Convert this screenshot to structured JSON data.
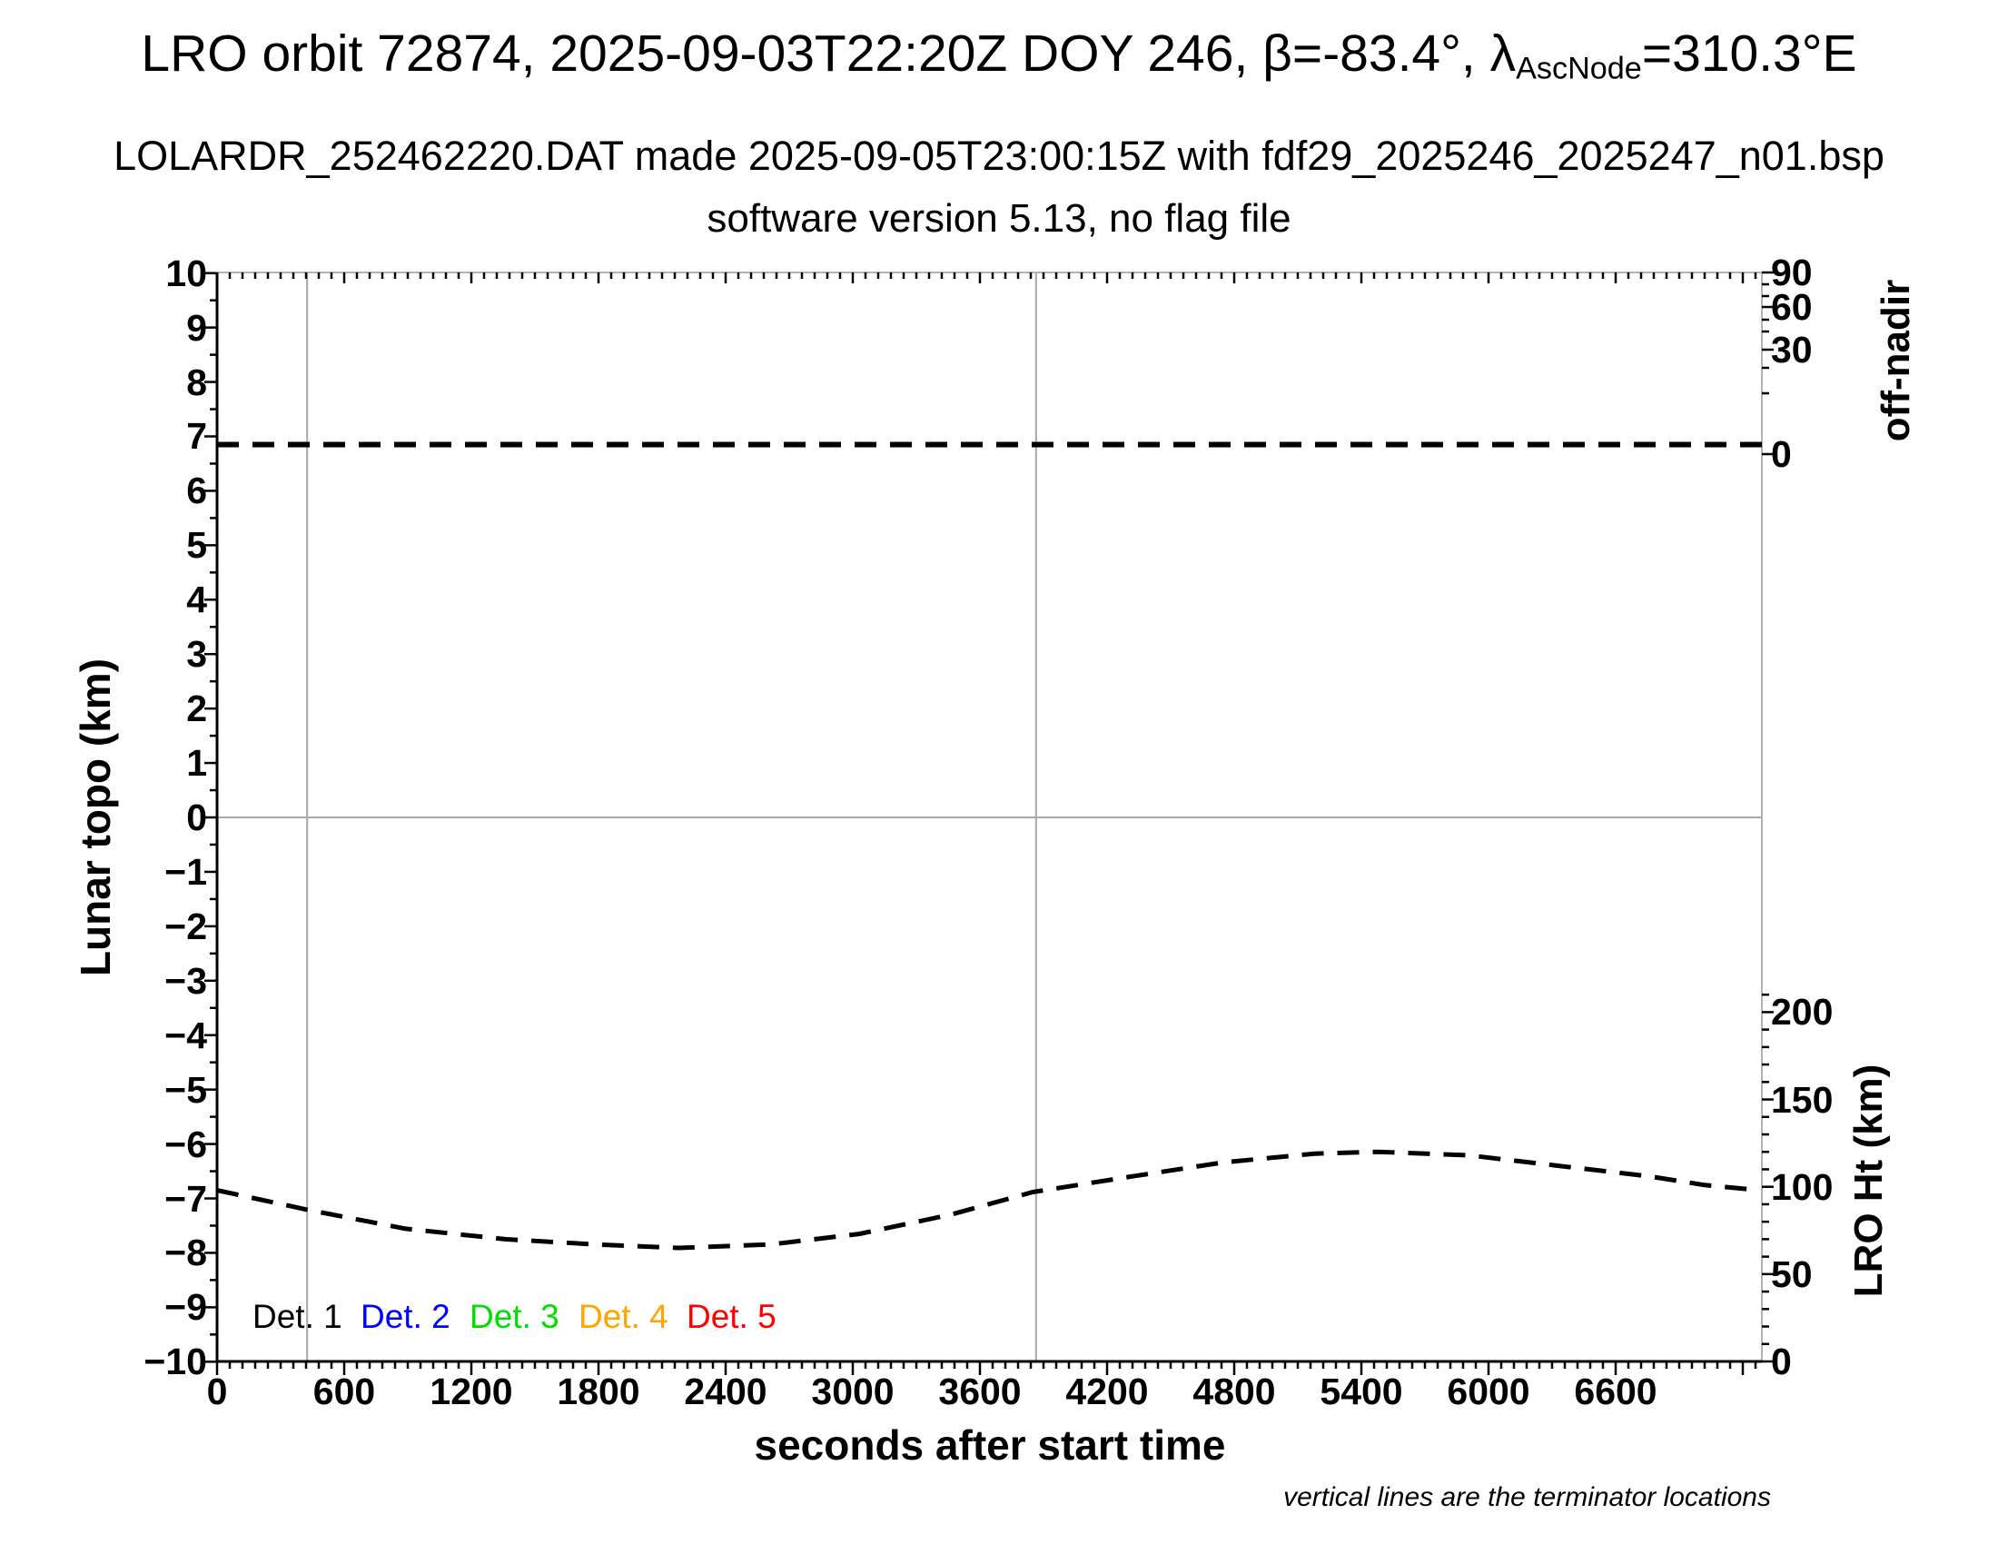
{
  "title": {
    "prefix": "LRO orbit 72874, 2025-09-03T22:20Z DOY 246, β=-83.4°, λ",
    "subscript": "AscNode",
    "suffix": "=310.3°E"
  },
  "subtitle_file": "LOLARDR_252462220.DAT made 2025-09-05T23:00:15Z with fdf29_2025246_2025247_n01.bsp",
  "subtitle_version": "software version 5.13, no flag file",
  "footnote": "vertical lines are the terminator locations",
  "axes": {
    "x": {
      "title": "seconds after start time",
      "tick_values": [
        0,
        600,
        1200,
        1800,
        2400,
        3000,
        3600,
        4200,
        4800,
        5400,
        6000,
        6600
      ],
      "tick_labels": [
        "0",
        "600",
        "1200",
        "1800",
        "2400",
        "3000",
        "3600",
        "4200",
        "4800",
        "5400",
        "6000",
        "6600"
      ],
      "minor_step_s": 60,
      "range_s": [
        0,
        7290
      ]
    },
    "y_left": {
      "title": "Lunar topo (km)",
      "range": [
        -10,
        10
      ],
      "major_step": 1,
      "minor_step": 0.5,
      "tick_labels": [
        "10",
        "9",
        "8",
        "7",
        "6",
        "5",
        "4",
        "3",
        "2",
        "1",
        "0",
        "−1",
        "−2",
        "−3",
        "−4",
        "−5",
        "−6",
        "−7",
        "−8",
        "−9",
        "−10"
      ]
    },
    "y_right_offnadir": {
      "title": "off-nadir",
      "ticks": [
        {
          "y": 300,
          "label": "90"
        },
        {
          "y": 313,
          "label": ""
        },
        {
          "y": 326,
          "label": ""
        },
        {
          "y": 338,
          "label": "60"
        },
        {
          "y": 352,
          "label": ""
        },
        {
          "y": 365,
          "label": ""
        },
        {
          "y": 385,
          "label": "30"
        },
        {
          "y": 405,
          "label": ""
        },
        {
          "y": 433,
          "label": ""
        },
        {
          "y": 500,
          "label": "0"
        }
      ]
    },
    "y_right_height": {
      "title": "LRO Ht (km)",
      "tick_values": [
        200,
        150,
        100,
        50,
        0
      ],
      "tick_labels": [
        "200",
        "150",
        "100",
        "50",
        "0"
      ],
      "minor_step_km": 10,
      "minor_max_km": 210
    }
  },
  "legend": {
    "items": [
      {
        "label": "Det. 1",
        "color": "#000000"
      },
      {
        "label": "Det. 2",
        "color": "#0000ff"
      },
      {
        "label": "Det. 3",
        "color": "#00dd00"
      },
      {
        "label": "Det. 4",
        "color": "#ffa500"
      },
      {
        "label": "Det. 5",
        "color": "#ff0000"
      }
    ]
  },
  "colors": {
    "curve": "#000000",
    "frame_dark": "#000000",
    "frame_light": "#b3b3b3",
    "guide_gray": "#a8a8a8"
  },
  "chart_data": {
    "type": "line",
    "title": "LRO orbit 72874, 2025-09-03T22:20Z DOY 246, β=-83.4°, λAscNode=310.3°E",
    "xlabel": "seconds after start time",
    "x_range_s": [
      0,
      7290
    ],
    "left_axis": {
      "label": "Lunar topo (km)",
      "range": [
        -10,
        10
      ]
    },
    "right_axes": [
      {
        "label": "off-nadir",
        "tick_labels": [
          90,
          60,
          30,
          0
        ],
        "scale": "nonlinear"
      },
      {
        "label": "LRO Ht (km)",
        "tick_labels": [
          200,
          150,
          100,
          50,
          0
        ]
      }
    ],
    "grid": false,
    "legend_entries": [
      "Det. 1",
      "Det. 2",
      "Det. 3",
      "Det. 4",
      "Det. 5"
    ],
    "series": [
      {
        "name": "off-nadir angle",
        "axis": "off-nadir",
        "style": "dashed",
        "color": "#000000",
        "description": "essentially constant near 0° off-nadir for the whole pass",
        "constant_topo_axis_level": 6.85,
        "t_s": [
          0,
          7290
        ],
        "value_deg": [
          2,
          2
        ]
      },
      {
        "name": "LRO height",
        "axis": "LRO Ht (km)",
        "style": "dashed",
        "color": "#000000",
        "t_s": [
          0,
          420,
          890,
          1360,
          1790,
          2180,
          2610,
          3030,
          3460,
          3850,
          4320,
          4750,
          5180,
          5480,
          5910,
          6330,
          6760,
          7020,
          7280
        ],
        "km": [
          98,
          87,
          76,
          70,
          67,
          65,
          67,
          73,
          84,
          97,
          106,
          114,
          119,
          120,
          118,
          112,
          106,
          101,
          98
        ]
      }
    ],
    "annotations": {
      "terminator_times_s": [
        425,
        3865
      ],
      "horizontal_zero_topo_line": 0
    }
  }
}
